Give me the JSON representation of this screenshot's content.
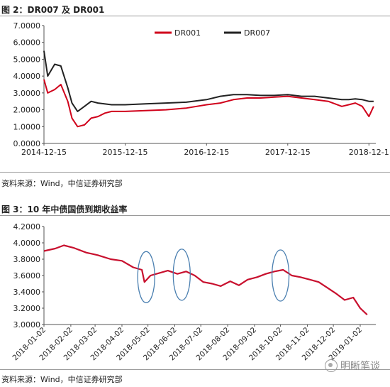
{
  "figures": [
    {
      "caption": "图 2：DR007 及 DR001",
      "source": "资料来源：Wind，中信证券研究部"
    },
    {
      "caption": "图 3：10 年中债国债到期收益率",
      "source": "资料来源：Wind，中信证券研究部"
    }
  ],
  "watermark": "明晰笔谈",
  "colors": {
    "dr001": "#d0021b",
    "dr007": "#222222",
    "yield": "#c8102e",
    "circle": "#4a7fb0"
  },
  "chart_data": [
    {
      "type": "line",
      "title": "",
      "xlabel": "",
      "ylabel": "",
      "x_ticks": [
        "2014-12-15",
        "2015-12-15",
        "2016-12-15",
        "2017-12-15",
        "2018-12-1"
      ],
      "y_ticks": [
        "0.0000",
        "1.0000",
        "2.0000",
        "3.0000",
        "4.0000",
        "5.0000",
        "6.0000",
        "7.0000"
      ],
      "ylim": [
        0,
        7
      ],
      "xlim": [
        "2014-12-15",
        "2019-01-15"
      ],
      "legend": {
        "position": "top-right",
        "entries": [
          "DR001",
          "DR007"
        ]
      },
      "series": [
        {
          "name": "DR001",
          "color": "#d0021b",
          "x": [
            "2014-12-15",
            "2015-01-01",
            "2015-02-01",
            "2015-03-01",
            "2015-04-01",
            "2015-04-20",
            "2015-05-15",
            "2015-06-15",
            "2015-07-15",
            "2015-08-15",
            "2015-09-15",
            "2015-10-15",
            "2015-12-15",
            "2016-03-15",
            "2016-06-15",
            "2016-09-15",
            "2016-12-15",
            "2017-02-15",
            "2017-04-15",
            "2017-06-15",
            "2017-08-15",
            "2017-10-15",
            "2017-12-15",
            "2018-02-15",
            "2018-04-15",
            "2018-06-15",
            "2018-08-15",
            "2018-09-15",
            "2018-10-15",
            "2018-11-15",
            "2018-12-15",
            "2019-01-05"
          ],
          "y": [
            3.8,
            3.0,
            3.2,
            3.5,
            2.5,
            1.5,
            1.0,
            1.1,
            1.5,
            1.6,
            1.8,
            1.9,
            1.9,
            1.95,
            2.0,
            2.1,
            2.3,
            2.4,
            2.6,
            2.7,
            2.7,
            2.75,
            2.8,
            2.7,
            2.6,
            2.5,
            2.2,
            2.3,
            2.4,
            2.2,
            1.6,
            2.2
          ]
        },
        {
          "name": "DR007",
          "color": "#222222",
          "x": [
            "2014-12-15",
            "2015-01-01",
            "2015-02-01",
            "2015-03-01",
            "2015-04-01",
            "2015-04-20",
            "2015-05-15",
            "2015-06-15",
            "2015-07-15",
            "2015-08-15",
            "2015-10-15",
            "2015-12-15",
            "2016-03-15",
            "2016-06-15",
            "2016-09-15",
            "2016-12-15",
            "2017-02-15",
            "2017-04-15",
            "2017-06-15",
            "2017-08-15",
            "2017-10-15",
            "2017-12-15",
            "2018-02-15",
            "2018-04-15",
            "2018-06-15",
            "2018-08-15",
            "2018-09-15",
            "2018-10-15",
            "2018-11-15",
            "2018-12-15",
            "2019-01-05"
          ],
          "y": [
            5.5,
            4.0,
            4.7,
            4.6,
            3.3,
            2.4,
            1.9,
            2.2,
            2.5,
            2.4,
            2.3,
            2.3,
            2.35,
            2.4,
            2.45,
            2.6,
            2.8,
            2.9,
            2.9,
            2.85,
            2.85,
            2.9,
            2.8,
            2.8,
            2.7,
            2.6,
            2.6,
            2.65,
            2.6,
            2.5,
            2.5
          ]
        }
      ]
    },
    {
      "type": "line",
      "title": "",
      "xlabel": "",
      "ylabel": "",
      "x_ticks": [
        "2018-01-02",
        "2018-02-02",
        "2018-03-02",
        "2018-04-02",
        "2018-05-02",
        "2018-06-02",
        "2018-07-02",
        "2018-08-02",
        "2018-09-02",
        "2018-10-02",
        "2018-11-02",
        "2018-12-02",
        "2019-01-02"
      ],
      "y_ticks": [
        "3.0000",
        "3.2000",
        "3.4000",
        "3.6000",
        "3.8000",
        "4.0000",
        "4.2000"
      ],
      "ylim": [
        3.0,
        4.2
      ],
      "xlim": [
        "2018-01-02",
        "2019-01-20"
      ],
      "series": [
        {
          "name": "",
          "color": "#c8102e",
          "x": [
            "2018-01-02",
            "2018-01-15",
            "2018-01-25",
            "2018-02-05",
            "2018-02-20",
            "2018-03-05",
            "2018-03-20",
            "2018-04-02",
            "2018-04-15",
            "2018-04-25",
            "2018-04-28",
            "2018-05-05",
            "2018-05-15",
            "2018-05-25",
            "2018-06-05",
            "2018-06-15",
            "2018-06-25",
            "2018-07-05",
            "2018-07-15",
            "2018-07-25",
            "2018-08-05",
            "2018-08-15",
            "2018-08-25",
            "2018-09-05",
            "2018-09-15",
            "2018-09-25",
            "2018-10-05",
            "2018-10-15",
            "2018-10-25",
            "2018-11-05",
            "2018-11-15",
            "2018-11-25",
            "2018-12-05",
            "2018-12-15",
            "2018-12-25",
            "2019-01-02",
            "2019-01-10"
          ],
          "y": [
            3.9,
            3.93,
            3.97,
            3.94,
            3.88,
            3.85,
            3.8,
            3.78,
            3.7,
            3.67,
            3.52,
            3.6,
            3.63,
            3.66,
            3.62,
            3.65,
            3.6,
            3.52,
            3.5,
            3.47,
            3.53,
            3.48,
            3.55,
            3.58,
            3.62,
            3.65,
            3.67,
            3.6,
            3.58,
            3.55,
            3.52,
            3.45,
            3.38,
            3.3,
            3.33,
            3.2,
            3.12
          ]
        }
      ],
      "annotations": [
        {
          "shape": "ellipse",
          "center": [
            "2018-04-30",
            3.58
          ]
        },
        {
          "shape": "ellipse",
          "center": [
            "2018-06-10",
            3.61
          ]
        },
        {
          "shape": "ellipse",
          "center": [
            "2018-10-02",
            3.6
          ]
        }
      ]
    }
  ]
}
